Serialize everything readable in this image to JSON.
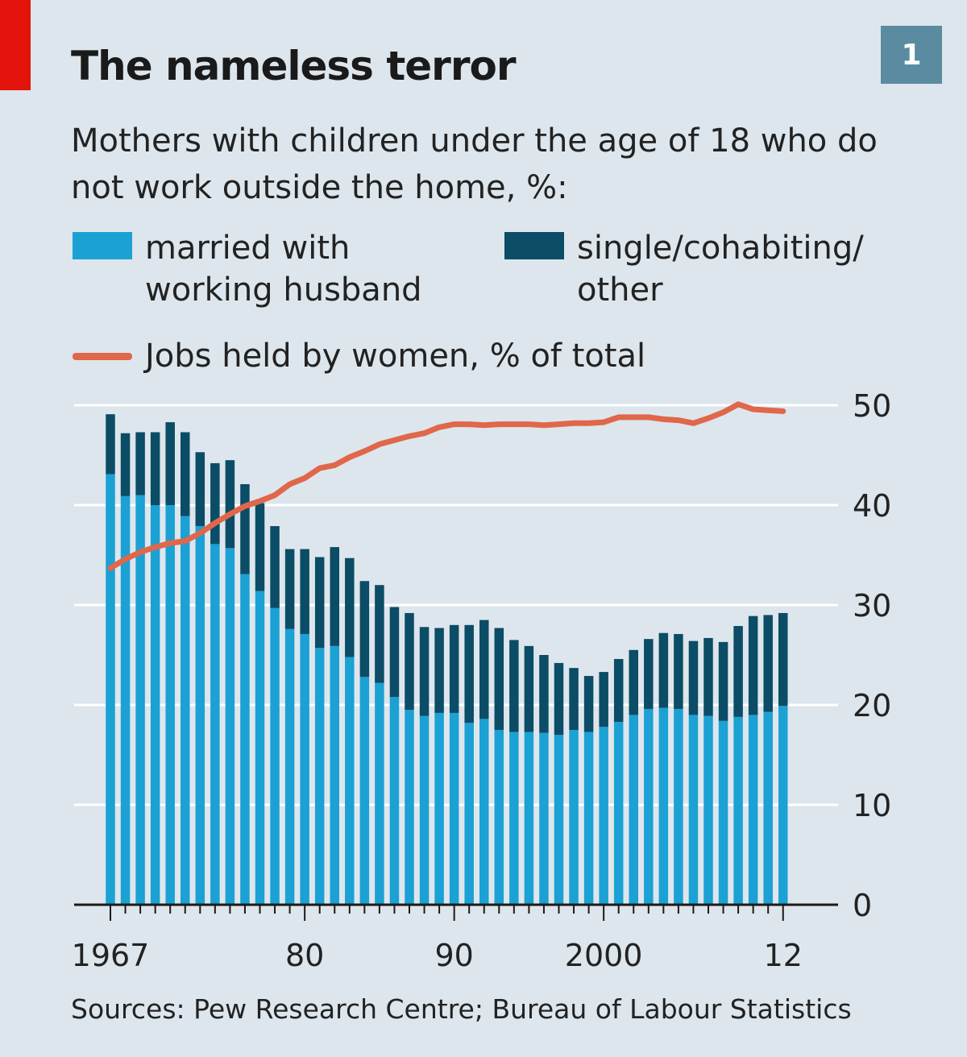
{
  "header": {
    "title": "The nameless terror",
    "badge": "1",
    "subtitle": "Mothers with children under the age of 18 who do not work outside the home, %:"
  },
  "legend": [
    {
      "label": "married with\nworking husband",
      "color": "#1ba1d4"
    },
    {
      "label": "single/cohabiting/\nother",
      "color": "#0b4c66"
    },
    {
      "label": "Jobs held by women, % of total",
      "color": "#e0674a"
    }
  ],
  "colors": {
    "background": "#dde6ec",
    "married": "#1ba1d4",
    "single": "#0b4c66",
    "jobs_line": "#e0674a",
    "brand_red": "#e3120b",
    "badge": "#5b8ba0"
  },
  "source": "Sources: Pew Research Centre; Bureau of Labour Statistics",
  "chart_data": {
    "type": "bar",
    "stacked": true,
    "x": [
      1967,
      1968,
      1969,
      1970,
      1971,
      1972,
      1973,
      1974,
      1975,
      1976,
      1977,
      1978,
      1979,
      1980,
      1981,
      1982,
      1983,
      1984,
      1985,
      1986,
      1987,
      1988,
      1989,
      1990,
      1991,
      1992,
      1993,
      1994,
      1995,
      1996,
      1997,
      1998,
      1999,
      2000,
      2001,
      2002,
      2003,
      2004,
      2005,
      2006,
      2007,
      2008,
      2009,
      2010,
      2011,
      2012
    ],
    "x_tick_labels": [
      {
        "x": 1967,
        "label": "1967"
      },
      {
        "x": 1980,
        "label": "80"
      },
      {
        "x": 1990,
        "label": "90"
      },
      {
        "x": 2000,
        "label": "2000"
      },
      {
        "x": 2012,
        "label": "12"
      }
    ],
    "series": [
      {
        "name": "married with working husband",
        "kind": "bar",
        "values": [
          43.1,
          40.9,
          41.0,
          40.0,
          40.0,
          38.9,
          37.9,
          36.1,
          35.7,
          33.1,
          31.4,
          29.7,
          27.6,
          27.1,
          25.7,
          25.9,
          24.8,
          22.8,
          22.2,
          20.8,
          19.5,
          18.9,
          19.2,
          19.2,
          18.2,
          18.6,
          17.5,
          17.3,
          17.3,
          17.2,
          17.0,
          17.5,
          17.3,
          17.8,
          18.3,
          19.0,
          19.6,
          19.7,
          19.6,
          19.0,
          18.9,
          18.4,
          18.8,
          19.0,
          19.3,
          19.9
        ]
      },
      {
        "name": "single/cohabiting/other",
        "kind": "bar",
        "values": [
          6.0,
          6.3,
          6.3,
          7.3,
          8.3,
          8.4,
          7.4,
          8.1,
          8.8,
          9.0,
          8.8,
          8.2,
          8.0,
          8.5,
          9.1,
          9.9,
          9.9,
          9.6,
          9.8,
          9.0,
          9.7,
          8.9,
          8.5,
          8.8,
          9.8,
          9.9,
          10.2,
          9.2,
          8.6,
          7.8,
          7.2,
          6.2,
          5.6,
          5.5,
          6.3,
          6.5,
          7.0,
          7.5,
          7.5,
          7.4,
          7.8,
          7.9,
          9.1,
          9.9,
          9.7,
          9.3
        ]
      },
      {
        "name": "Jobs held by women, % of total",
        "kind": "line",
        "values": [
          33.7,
          34.6,
          35.3,
          35.8,
          36.2,
          36.4,
          37.2,
          38.2,
          39.1,
          39.9,
          40.4,
          41.0,
          42.1,
          42.7,
          43.7,
          44.0,
          44.8,
          45.4,
          46.1,
          46.5,
          46.9,
          47.2,
          47.8,
          48.1,
          48.1,
          48.0,
          48.1,
          48.1,
          48.1,
          48.0,
          48.1,
          48.2,
          48.2,
          48.3,
          48.8,
          48.8,
          48.8,
          48.6,
          48.5,
          48.2,
          48.7,
          49.3,
          50.1,
          49.6,
          49.5,
          49.4
        ]
      }
    ],
    "y_ticks": [
      0,
      10,
      20,
      30,
      40,
      50
    ],
    "ylim": [
      0,
      50
    ],
    "ylabel": "",
    "xlabel": "",
    "grid": true,
    "y_axis_side": "right"
  }
}
